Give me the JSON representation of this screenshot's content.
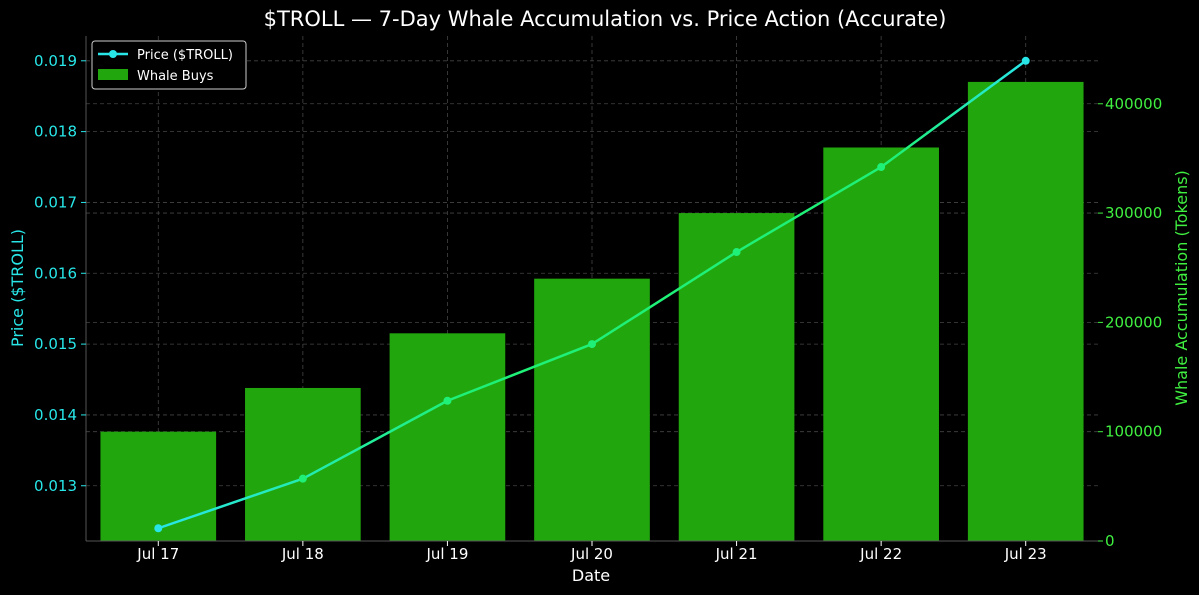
{
  "chart_data": {
    "type": "bar",
    "title": "$TROLL — 7-Day Whale Accumulation vs. Price Action (Accurate)",
    "xlabel": "Date",
    "ylabel_left": "Price ($TROLL)",
    "ylabel_right": "Whale Accumulation (Tokens)",
    "categories": [
      "Jul 17",
      "Jul 18",
      "Jul 19",
      "Jul 20",
      "Jul 21",
      "Jul 22",
      "Jul 23"
    ],
    "series": [
      {
        "name": "Whale Buys",
        "type": "bar",
        "axis": "right",
        "color": "#22a60e",
        "values": [
          100000,
          140000,
          190000,
          240000,
          300000,
          360000,
          420000
        ]
      },
      {
        "name": "Price ($TROLL)",
        "type": "line",
        "axis": "left",
        "color": "#1ff077",
        "legend_color": "#28e6e8",
        "values": [
          0.0124,
          0.0131,
          0.0142,
          0.015,
          0.0163,
          0.0175,
          0.019
        ]
      }
    ],
    "ylim_left": [
      0.01222,
      0.01935
    ],
    "yticks_left": [
      0.013,
      0.014,
      0.015,
      0.016,
      0.017,
      0.018,
      0.019
    ],
    "ytick_labels_left": [
      "0.013",
      "0.014",
      "0.015",
      "0.016",
      "0.017",
      "0.018",
      "0.019"
    ],
    "ylim_right": [
      0,
      462000
    ],
    "yticks_right": [
      0,
      100000,
      200000,
      300000,
      400000
    ],
    "ytick_labels_right": [
      "0",
      "100000",
      "200000",
      "300000",
      "400000"
    ],
    "legend": {
      "placement": "top-left",
      "entries": [
        "Price ($TROLL)",
        "Whale Buys"
      ]
    },
    "grid": true,
    "colors": {
      "background": "#000000",
      "text": "#ffffff",
      "left_axis": "#28e6e8",
      "right_axis": "#40f040",
      "grid": "#444444"
    }
  }
}
